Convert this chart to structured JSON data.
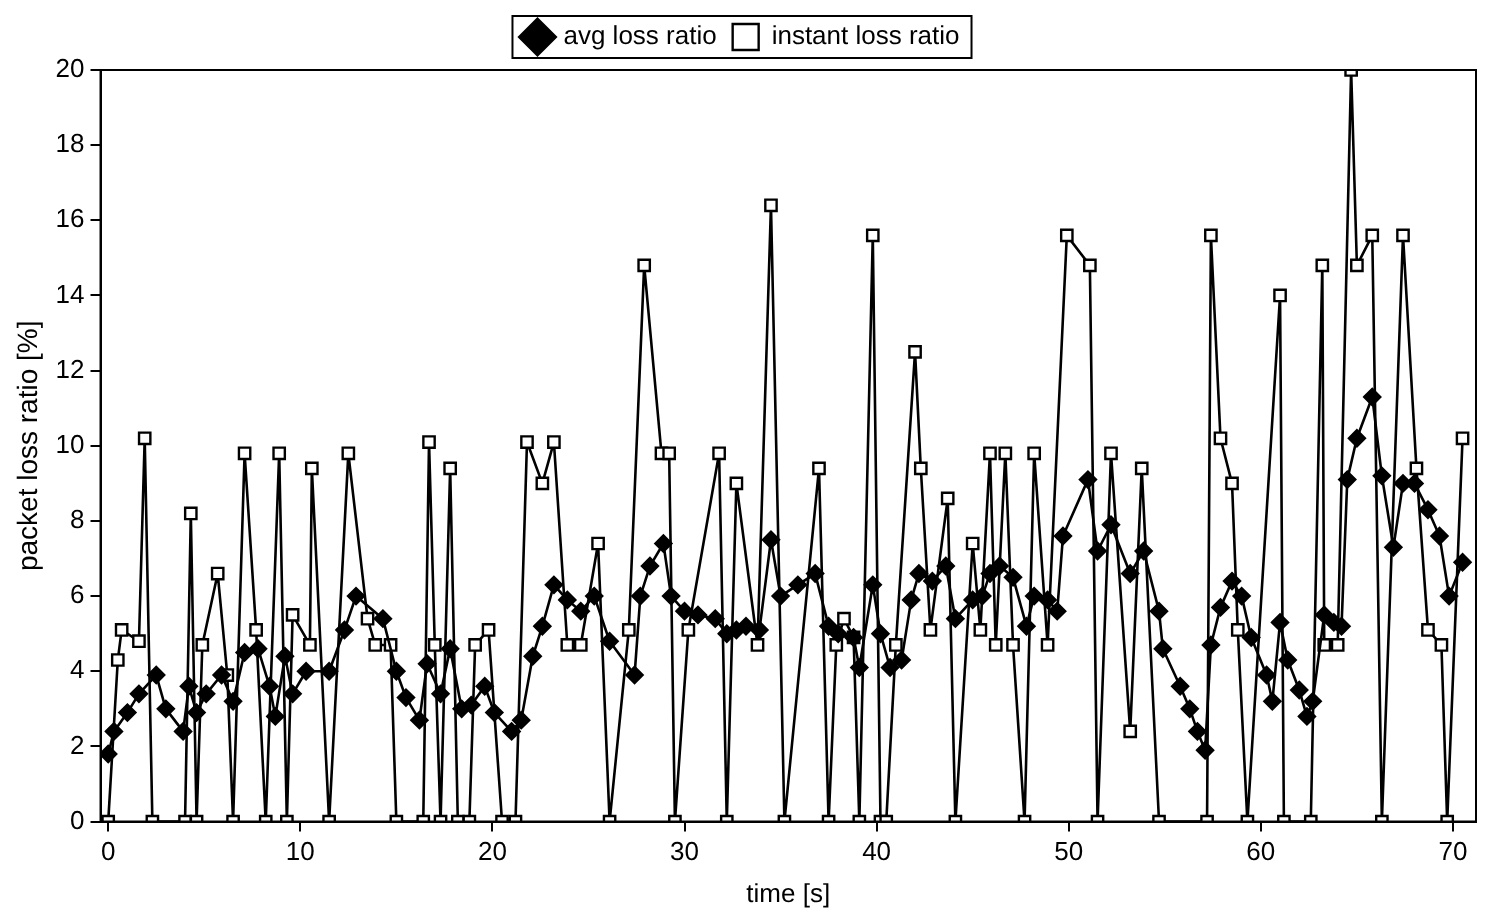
{
  "chart_data": {
    "type": "line",
    "xlabel": "time [s]",
    "ylabel": "packet loss ratio [%]",
    "xlim": [
      -0.4,
      71.2
    ],
    "xticks": [
      0,
      10,
      20,
      30,
      40,
      50,
      60,
      70
    ],
    "ylim": [
      0,
      20
    ],
    "yticks": [
      0,
      2,
      4,
      6,
      8,
      10,
      12,
      14,
      16,
      18,
      20
    ],
    "grid": false,
    "legend": "top",
    "line_style": "solid",
    "series": [
      {
        "name": "avg loss ratio",
        "color": "#000000",
        "marker": "diamond",
        "x": [
          0,
          0.3,
          1,
          1.6,
          2.5,
          3,
          3.9,
          4.2,
          4.6,
          5.1,
          5.9,
          6.5,
          7.1,
          7.8,
          8.4,
          8.7,
          9.2,
          9.6,
          10.3,
          11.5,
          12.3,
          12.9,
          14.3,
          15,
          15.5,
          16.2,
          16.6,
          17.3,
          17.8,
          18.4,
          18.9,
          19.6,
          20.1,
          21,
          21.5,
          22.1,
          22.6,
          23.2,
          23.9,
          24.6,
          25.3,
          26.1,
          27.4,
          27.7,
          28.2,
          28.9,
          29.3,
          30,
          30.7,
          31.6,
          32.2,
          32.7,
          33.2,
          33.9,
          34.5,
          35,
          35.9,
          36.8,
          37.5,
          38,
          38.8,
          39.1,
          39.8,
          40.2,
          40.7,
          41.3,
          41.8,
          42.2,
          42.9,
          43.6,
          44.1,
          45,
          45.5,
          45.9,
          46.4,
          47.1,
          47.8,
          48.2,
          48.9,
          49.4,
          49.7,
          51,
          51.5,
          52.2,
          53.2,
          53.9,
          54.7,
          54.9,
          55.8,
          56.3,
          56.7,
          57.1,
          57.4,
          57.9,
          58.5,
          59,
          59.5,
          60.3,
          60.6,
          61,
          61.4,
          62,
          62.4,
          62.7,
          63.3,
          63.8,
          64.2,
          64.5,
          65,
          65.8,
          66.3,
          66.9,
          67.4,
          68,
          68.7,
          69.3,
          69.8,
          70.5
        ],
        "values": [
          1.8,
          2.4,
          2.9,
          3.4,
          3.9,
          3,
          2.4,
          3.6,
          2.9,
          3.4,
          3.9,
          3.2,
          4.5,
          4.6,
          3.6,
          2.8,
          4.4,
          3.4,
          4,
          4,
          5.1,
          6,
          5.4,
          4,
          3.3,
          2.7,
          4.2,
          3.4,
          4.6,
          3,
          3.1,
          3.6,
          2.9,
          2.4,
          2.7,
          4.4,
          5.2,
          6.3,
          5.9,
          5.6,
          6,
          4.8,
          3.9,
          6,
          6.8,
          7.4,
          6,
          5.6,
          5.5,
          5.4,
          5,
          5.1,
          5.2,
          5.1,
          7.5,
          6,
          6.3,
          6.6,
          5.2,
          5,
          4.9,
          4.1,
          6.3,
          5,
          4.1,
          4.3,
          5.9,
          6.6,
          6.4,
          6.8,
          5.4,
          5.9,
          6,
          6.6,
          6.8,
          6.5,
          5.2,
          6,
          5.9,
          5.6,
          7.6,
          9.1,
          7.2,
          7.9,
          6.6,
          7.2,
          5.6,
          4.6,
          3.6,
          3,
          2.4,
          1.9,
          4.7,
          5.7,
          6.4,
          6,
          4.9,
          3.9,
          3.2,
          5.3,
          4.3,
          3.5,
          2.8,
          3.2,
          5.5,
          5.3,
          5.2,
          9.1,
          10.2,
          11.3,
          9.2,
          7.3,
          9,
          9,
          8.3,
          7.6,
          6,
          6.9
        ]
      },
      {
        "name": "instant loss ratio",
        "color": "#000000",
        "marker": "square",
        "x": [
          0,
          0.5,
          0.7,
          1.6,
          1.9,
          2.3,
          4,
          4.3,
          4.6,
          4.9,
          5.7,
          6.2,
          6.5,
          7.1,
          7.7,
          8.2,
          8.9,
          9.3,
          9.6,
          10.5,
          10.6,
          11.5,
          12.5,
          13.5,
          13.9,
          14.7,
          15,
          16.4,
          16.7,
          17,
          17.3,
          17.8,
          18.2,
          18.8,
          19.1,
          19.8,
          20.5,
          21.2,
          21.8,
          22.6,
          23.2,
          23.9,
          24.6,
          25.5,
          26.1,
          27.1,
          27.9,
          28.8,
          29.2,
          29.5,
          30.2,
          31.8,
          32.2,
          32.7,
          33.8,
          34.5,
          35.2,
          37,
          37.5,
          37.9,
          38.3,
          38.8,
          39.1,
          39.8,
          40.2,
          40.5,
          41,
          42,
          42.3,
          42.8,
          43.7,
          44.1,
          45,
          45.4,
          45.9,
          46.2,
          46.7,
          47.1,
          47.7,
          48.2,
          48.9,
          49.9,
          51.1,
          51.5,
          52.2,
          53.2,
          53.8,
          54.7,
          57.2,
          57.4,
          57.9,
          58.5,
          58.8,
          59.3,
          61,
          61.2,
          62.6,
          63.2,
          63.3,
          64,
          64.7,
          65,
          65.8,
          66.3,
          67.4,
          68.1,
          68.7,
          69.4,
          69.7,
          70.5
        ],
        "values": [
          0,
          4.3,
          5.1,
          4.8,
          10.2,
          0,
          0,
          8.2,
          0,
          4.7,
          6.6,
          3.9,
          0,
          9.8,
          5.1,
          0,
          9.8,
          0,
          5.5,
          4.7,
          9.4,
          0,
          9.8,
          5.4,
          4.7,
          4.7,
          0,
          0,
          10.1,
          4.7,
          0,
          9.4,
          0,
          0,
          4.7,
          5.1,
          0,
          0,
          10.1,
          9,
          10.1,
          4.7,
          4.7,
          7.4,
          0,
          5.1,
          14.8,
          9.8,
          9.8,
          0,
          5.1,
          9.8,
          0,
          9,
          4.7,
          16.4,
          0,
          9.4,
          0,
          4.7,
          5.4,
          4.9,
          0,
          15.6,
          0,
          0,
          4.7,
          12.5,
          9.4,
          5.1,
          8.6,
          0,
          7.4,
          5.1,
          9.8,
          4.7,
          9.8,
          4.7,
          0,
          9.8,
          4.7,
          15.6,
          14.8,
          0,
          9.8,
          2.4,
          9.4,
          0,
          0,
          15.6,
          10.2,
          9,
          5.1,
          0,
          14,
          0,
          0,
          14.8,
          4.7,
          4.7,
          20,
          14.8,
          15.6,
          0,
          15.6,
          9.4,
          5.1,
          4.7,
          0,
          10.2
        ]
      }
    ]
  }
}
